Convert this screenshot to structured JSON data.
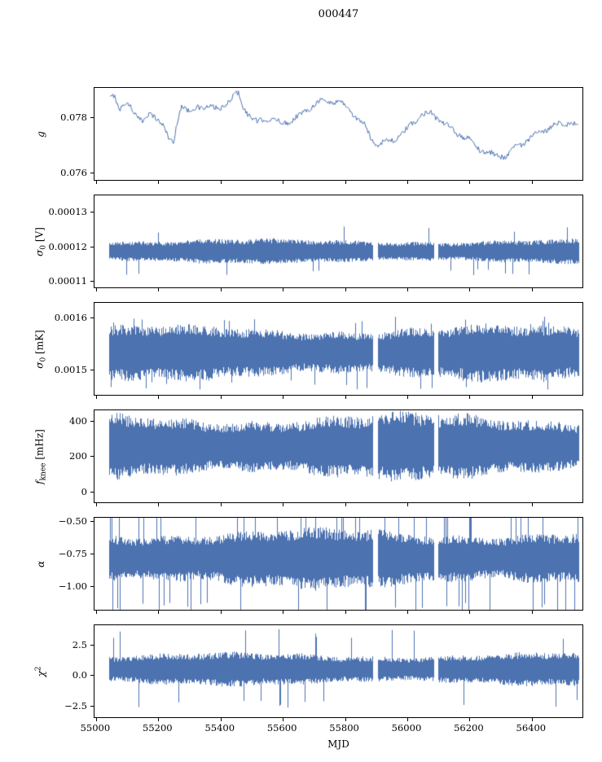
{
  "title": "000447",
  "chart_data": {
    "type": "line",
    "title": "000447",
    "xlabel": "MJD",
    "xlim": [
      54995,
      56568
    ],
    "x_data_range": [
      55040,
      56556
    ],
    "x_ticks": [
      55000,
      55200,
      55400,
      55600,
      55800,
      56000,
      56200,
      56400
    ],
    "x_tick_labels": [
      "55000",
      "55200",
      "55400",
      "55600",
      "55800",
      "56000",
      "56200",
      "56400"
    ],
    "data_gaps": [
      [
        55893,
        55908
      ],
      [
        56089,
        56103
      ]
    ],
    "line_color": "#4c72b0",
    "grid": false,
    "legend": "none",
    "panels": [
      {
        "id": "g",
        "ylabel_pre": "g",
        "ylabel_sub": "",
        "ylabel_sup": "",
        "ylabel_unit": "",
        "ylim": [
          0.0757,
          0.0791
        ],
        "yticks": [
          0.076,
          0.078
        ],
        "ytick_labels": [
          "0.076",
          "0.078"
        ],
        "kind": "line",
        "jitter": 0.00012,
        "x": [
          55045,
          55060,
          55075,
          55090,
          55110,
          55130,
          55150,
          55170,
          55195,
          55215,
          55235,
          55250,
          55262,
          55275,
          55300,
          55330,
          55360,
          55390,
          55420,
          55445,
          55460,
          55475,
          55500,
          55520,
          55545,
          55570,
          55600,
          55630,
          55660,
          55690,
          55720,
          55750,
          55780,
          55810,
          55840,
          55865,
          55885,
          55905,
          55930,
          55960,
          55990,
          56020,
          56050,
          56080,
          56110,
          56140,
          56170,
          56200,
          56230,
          56260,
          56290,
          56320,
          56350,
          56380,
          56410,
          56440,
          56470,
          56500,
          56530,
          56555
        ],
        "y": [
          0.0787,
          0.0789,
          0.0783,
          0.0785,
          0.0784,
          0.0781,
          0.0779,
          0.0781,
          0.078,
          0.0778,
          0.0772,
          0.077,
          0.0779,
          0.0785,
          0.0782,
          0.0784,
          0.0784,
          0.0783,
          0.0785,
          0.0788,
          0.0789,
          0.0784,
          0.078,
          0.0778,
          0.078,
          0.0779,
          0.0778,
          0.0779,
          0.0781,
          0.0784,
          0.0786,
          0.0786,
          0.0786,
          0.0784,
          0.078,
          0.0777,
          0.0773,
          0.077,
          0.0771,
          0.0772,
          0.0774,
          0.0778,
          0.0781,
          0.0782,
          0.0779,
          0.0776,
          0.0774,
          0.0772,
          0.0769,
          0.0767,
          0.0766,
          0.0766,
          0.0769,
          0.0771,
          0.0773,
          0.0775,
          0.0777,
          0.0778,
          0.0778,
          0.0777
        ]
      },
      {
        "id": "sigma0-v",
        "ylabel_pre": "σ",
        "ylabel_sub": "0",
        "ylabel_sup": "",
        "ylabel_unit": " [V]",
        "ylim": [
          0.000108,
          0.000135
        ],
        "yticks": [
          0.00011,
          0.00012,
          0.00013
        ],
        "ytick_labels": [
          "0.00011",
          "0.00012",
          "0.00013"
        ],
        "kind": "noise",
        "center": 0.0001185,
        "hi": 3.8e-06,
        "lo": 3.6e-06,
        "spike_prob": 0.02,
        "spike_scale": 1.7
      },
      {
        "id": "sigma0-mk",
        "ylabel_pre": "σ",
        "ylabel_sub": "0",
        "ylabel_sup": "",
        "ylabel_unit": " [mK]",
        "ylim": [
          0.00145,
          0.00163
        ],
        "yticks": [
          0.0015,
          0.0016
        ],
        "ytick_labels": [
          "0.0015",
          "0.0016"
        ],
        "kind": "noise",
        "center": 0.001535,
        "hi": 5.2e-05,
        "lo": 5.8e-05,
        "spike_prob": 0.03,
        "spike_scale": 1.15
      },
      {
        "id": "fknee",
        "ylabel_pre": "f",
        "ylabel_sub": "knee",
        "ylabel_sup": "",
        "ylabel_unit": " [mHz]",
        "ylim": [
          -65,
          462
        ],
        "yticks": [
          0,
          200,
          400
        ],
        "ytick_labels": [
          "0",
          "200",
          "400"
        ],
        "kind": "noise",
        "center": 255,
        "hi": 195,
        "lo": 195,
        "spike_prob": 0.0,
        "spike_scale": 1.0
      },
      {
        "id": "alpha",
        "ylabel_pre": "α",
        "ylabel_sub": "",
        "ylabel_sup": "",
        "ylabel_unit": "",
        "ylim": [
          -1.19,
          -0.468
        ],
        "yticks": [
          -1.0,
          -0.75,
          -0.5
        ],
        "ytick_labels": [
          "−1.00",
          "−0.75",
          "−0.50"
        ],
        "kind": "noise",
        "center": -0.78,
        "hi": 0.23,
        "lo": 0.25,
        "spike_prob": 0.06,
        "spike_scale": 1.65
      },
      {
        "id": "chi2",
        "ylabel_pre": "χ",
        "ylabel_sub": "",
        "ylabel_sup": "2",
        "ylabel_unit": "",
        "ylim": [
          -3.49,
          4.15
        ],
        "yticks": [
          -2.5,
          0.0,
          2.5
        ],
        "ytick_labels": [
          "−2.5",
          "0.0",
          "2.5"
        ],
        "kind": "noise",
        "center": 0.5,
        "hi": 1.4,
        "lo": 1.4,
        "spike_prob": 0.02,
        "spike_scale": 2.1
      }
    ]
  }
}
